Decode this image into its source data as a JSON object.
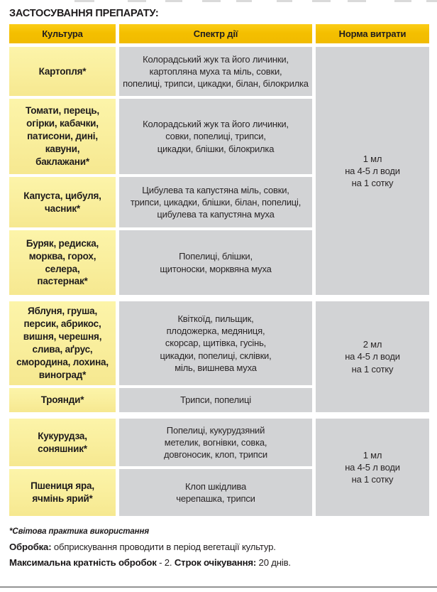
{
  "title": "ЗАСТОСУВАННЯ ПРЕПАРАТУ:",
  "table": {
    "headers": {
      "culture": "Культура",
      "spectrum": "Спектр дії",
      "rate": "Норма витрати"
    },
    "groups": [
      {
        "rate": "1 мл\nна 4-5 л води\nна 1 сотку",
        "rows": [
          {
            "culture": "Картопля*",
            "spectrum": "Колорадський жук та його личинки,\nкартопляна муха та міль, совки,\nпопелиці, трипси, цикадки, білан, білокрилка"
          },
          {
            "culture": "Томати, перець,\nогірки, кабачки,\nпатисони, дині,\nкавуни,\nбаклажани*",
            "spectrum": "Колорадський жук та його личинки,\nсовки, попелиці, трипси,\nцикадки, блішки, білокрилка"
          },
          {
            "culture": "Капуста, цибуля,\nчасник*",
            "spectrum": "Цибулева та капустяна міль, совки,\nтрипси, цикадки, блішки, білан, попелиці,\nцибулева та капустяна муха"
          },
          {
            "culture": "Буряк, редиска,\nморква, горох,\nселера,\nпастернак*",
            "spectrum": "Попелиці, блішки,\nщитоноски, морквяна муха"
          }
        ]
      },
      {
        "rate": "2 мл\nна 4-5 л води\nна 1 сотку",
        "rows": [
          {
            "culture": "Яблуня, груша,\nперсик, абрикос,\nвишня, черешня,\nслива, аґрус,\nсмородина, лохина,\nвиноград*",
            "spectrum": "Квіткоїд, пильщик,\nплодожерка, медяниця,\nскорсар, щитівка, гусінь,\nцикадки, попелиці, склівки,\nміль, вишнева муха"
          },
          {
            "culture": "Троянди*",
            "spectrum": "Трипси, попелиці"
          }
        ]
      },
      {
        "rate": "1 мл\nна 4-5 л води\nна 1 сотку",
        "rows": [
          {
            "culture": "Кукурудза,\nсоняшник*",
            "spectrum": "Попелиці, кукурудзяний\nметелик, вогнівки, совка,\nдовгоносик, клоп, трипси"
          },
          {
            "culture": "Пшениця яра,\nячмінь ярий*",
            "spectrum": "Клоп шкідлива\nчерепашка, трипси"
          }
        ]
      }
    ]
  },
  "footer": {
    "note": "*Світова практика використання",
    "treatment_label": "Обробка:",
    "treatment_text": " обприскування проводити в період вегетації культур.",
    "frequency_label": "Максимальна кратність обробок",
    "frequency_text": " - 2. ",
    "waiting_label": "Строк очікування:",
    "waiting_text": " 20 днів."
  },
  "colors": {
    "header_gold": "#f4bf00",
    "culture_yellow": "#f9ee9c",
    "cell_gray": "#d2d3d5",
    "text": "#262223"
  }
}
